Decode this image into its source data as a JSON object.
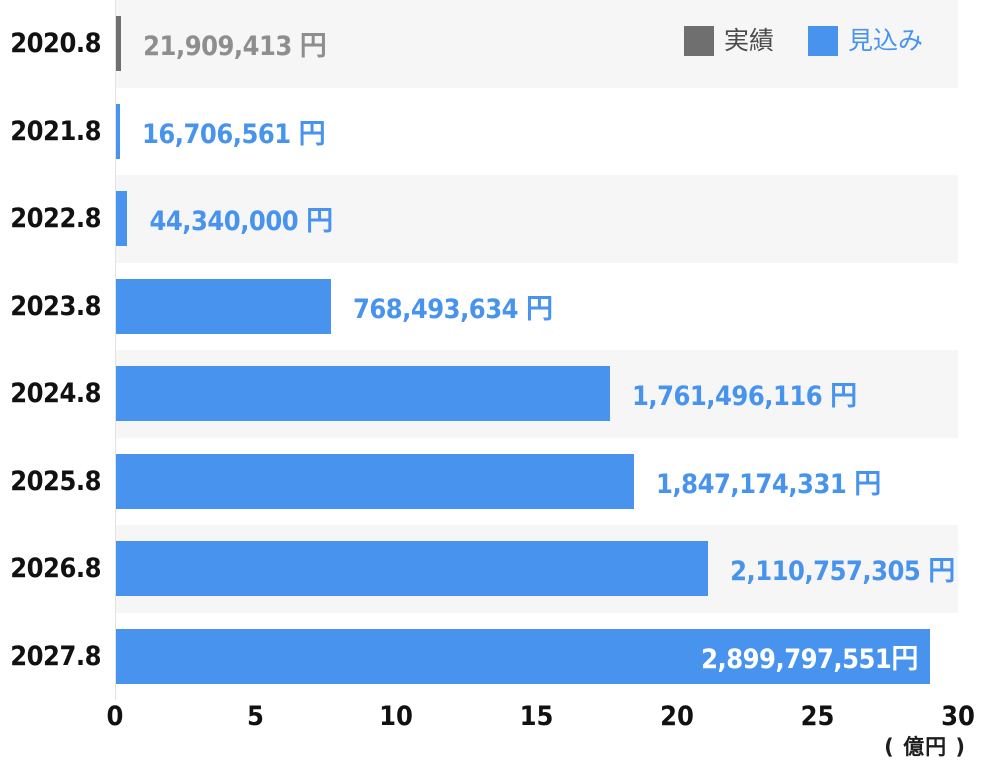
{
  "colors": {
    "forecast_blue": "#4793EE",
    "actual_gray": "#6F6F6F",
    "band_gray": "#F6F6F7",
    "year_text": "#111111",
    "axis_line": "#E3E3E3",
    "white": "#FFFFFF"
  },
  "chart_data": {
    "type": "bar",
    "orientation": "horizontal",
    "title": "",
    "grid": false,
    "legend_position": "top-right",
    "unit": "円",
    "axis_unit_label": "( 億円 )",
    "xlim_oku": [
      0,
      30
    ],
    "tick_values_oku": [
      0,
      5,
      10,
      15,
      20,
      25,
      30
    ],
    "ticks": [
      "0",
      "5",
      "10",
      "15",
      "20",
      "25",
      "30"
    ],
    "oku_in_yen": 100000000,
    "categories": [
      "2020.8",
      "2021.8",
      "2022.8",
      "2023.8",
      "2024.8",
      "2025.8",
      "2026.8",
      "2027.8"
    ],
    "series_defs": [
      {
        "key": "actual",
        "name": "実績",
        "color": "#6F6F6F",
        "label_color": "#4B4B4B"
      },
      {
        "key": "forecast",
        "name": "見込み",
        "color": "#4793EE",
        "label_color": "#4793EE"
      }
    ],
    "bars": [
      {
        "category": "2020.8",
        "series": "actual",
        "value_yen": 21909413,
        "label": "21,909,413 円",
        "label_placement": "outside",
        "label_color": "#8E8E8E"
      },
      {
        "category": "2021.8",
        "series": "forecast",
        "value_yen": 16706561,
        "label": "16,706,561 円",
        "label_placement": "outside",
        "label_color": "#4793EE"
      },
      {
        "category": "2022.8",
        "series": "forecast",
        "value_yen": 44340000,
        "label": "44,340,000 円",
        "label_placement": "outside",
        "label_color": "#4793EE"
      },
      {
        "category": "2023.8",
        "series": "forecast",
        "value_yen": 768493634,
        "label": "768,493,634 円",
        "label_placement": "outside",
        "label_color": "#4793EE"
      },
      {
        "category": "2024.8",
        "series": "forecast",
        "value_yen": 1761496116,
        "label": "1,761,496,116 円",
        "label_placement": "outside",
        "label_color": "#4793EE"
      },
      {
        "category": "2025.8",
        "series": "forecast",
        "value_yen": 1847174331,
        "label": "1,847,174,331 円",
        "label_placement": "outside",
        "label_color": "#4793EE"
      },
      {
        "category": "2026.8",
        "series": "forecast",
        "value_yen": 2110757305,
        "label": "2,110,757,305 円",
        "label_placement": "outside",
        "label_color": "#4793EE"
      },
      {
        "category": "2027.8",
        "series": "forecast",
        "value_yen": 2899797551,
        "label": "2,899,797,551円",
        "label_placement": "inside",
        "label_color": "#FFFFFF"
      }
    ]
  }
}
